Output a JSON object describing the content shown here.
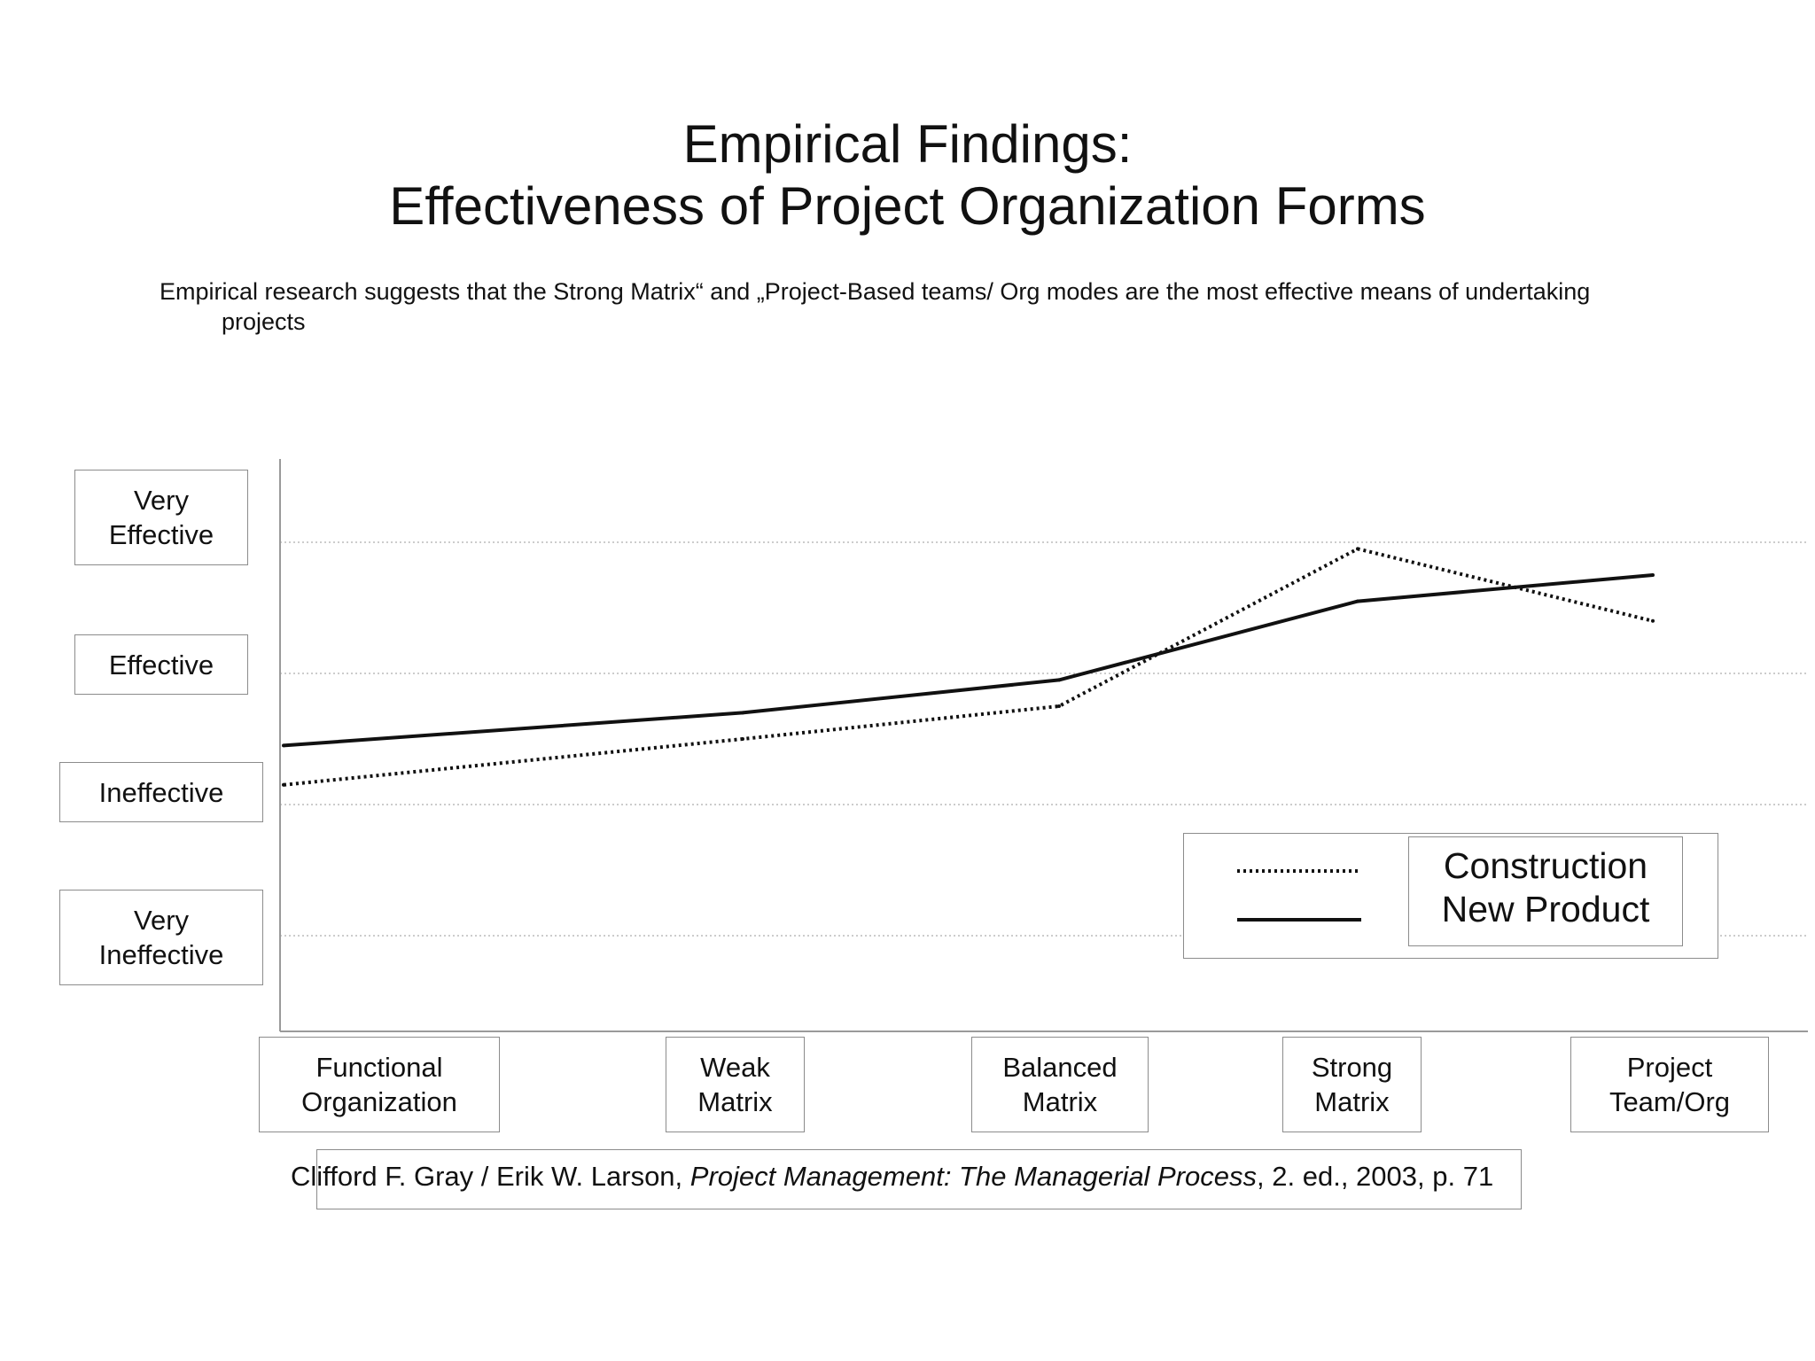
{
  "header": {
    "title_line1": "Empirical Findings:",
    "title_line2": "Effectiveness of Project Organization Forms",
    "subtitle_line1": "Empirical research suggests that the Strong Matrix“ and „Project-Based teams/ Org modes are the most effective means of undertaking",
    "subtitle_line2": "projects"
  },
  "chart_data": {
    "type": "line",
    "title": "Empirical Findings: Effectiveness of Project Organization Forms",
    "categories": [
      "Functional Organization",
      "Weak Matrix",
      "Balanced Matrix",
      "Strong Matrix",
      "Project Team/Org"
    ],
    "category_labels": [
      [
        "Functional",
        "Organization"
      ],
      [
        "Weak",
        "Matrix"
      ],
      [
        "Balanced",
        "Matrix"
      ],
      [
        "Strong",
        "Matrix"
      ],
      [
        "Project",
        "Team/Org"
      ]
    ],
    "y_levels": [
      {
        "value": 1,
        "label": [
          "Very",
          "Ineffective"
        ]
      },
      {
        "value": 2,
        "label": [
          "Ineffective"
        ]
      },
      {
        "value": 3,
        "label": [
          "Effective"
        ]
      },
      {
        "value": 4,
        "label": [
          "Very",
          "Effective"
        ]
      }
    ],
    "ylim": [
      1,
      4
    ],
    "grid": true,
    "series": [
      {
        "name": "Construction",
        "style": "dotted",
        "values": [
          2.15,
          2.5,
          2.75,
          3.95,
          3.4
        ]
      },
      {
        "name": "New Product",
        "style": "solid",
        "values": [
          2.45,
          2.7,
          2.95,
          3.55,
          3.75
        ]
      }
    ],
    "legend_position": "bottom-right",
    "line_color": "#111111",
    "grid_color": "#9a9a9a"
  },
  "citation": {
    "authors": "Clifford F. Gray / Erik W. Larson, ",
    "book": "Project Management: The Managerial Process",
    "rest": ", 2. ed., 2003, p. 71"
  }
}
